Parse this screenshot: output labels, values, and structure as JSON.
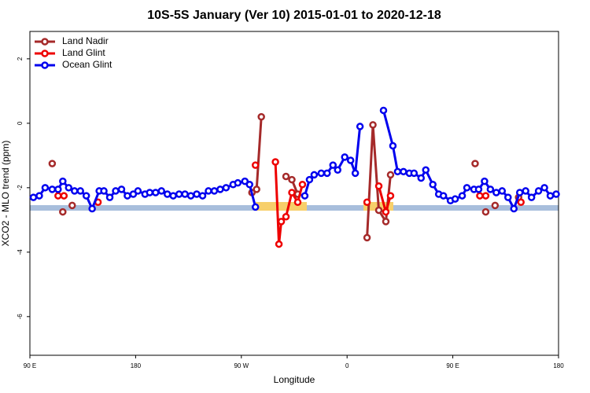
{
  "chart_data": {
    "type": "line",
    "title": "10S-5S January (Ver 10)   2015-01-01 to 2020-12-18",
    "x_label": "Longitude",
    "y_label": "XCO2 - MLO trend (ppm)",
    "xlim": [
      90,
      540
    ],
    "ylim": [
      -7.2,
      2.85
    ],
    "xticks": [
      {
        "value": 90,
        "label": "90 E"
      },
      {
        "value": 180,
        "label": "180"
      },
      {
        "value": 270,
        "label": "90 W"
      },
      {
        "value": 360,
        "label": "0"
      },
      {
        "value": 450,
        "label": "90 E"
      },
      {
        "value": 540,
        "label": "180"
      }
    ],
    "yticks": [
      2,
      0,
      -2,
      -4,
      -6
    ],
    "legend": "top-left",
    "series": [
      {
        "name": "Land Nadir",
        "color": "#a52a2a",
        "x": [
          109,
          null,
          118,
          null,
          126,
          null,
          279,
          283,
          287,
          null,
          308,
          313,
          318,
          null,
          377,
          382,
          387,
          393,
          397,
          null,
          469,
          null,
          478,
          null,
          486,
          null,
          506
        ],
        "values": [
          -1.25,
          null,
          -2.75,
          null,
          -2.55,
          null,
          -2.15,
          -2.05,
          0.2,
          null,
          -1.65,
          -1.75,
          -2.2,
          null,
          -3.55,
          -0.05,
          -2.7,
          -3.05,
          -1.6,
          null,
          -1.25,
          null,
          -2.75,
          null,
          -2.55,
          null,
          -2.3
        ]
      },
      {
        "name": "Land Glint",
        "color": "#ee0000",
        "x": [
          114,
          119,
          null,
          148,
          null,
          282,
          null,
          299,
          302,
          304,
          308,
          313,
          318,
          322,
          null,
          377,
          null,
          387,
          393,
          397,
          null,
          473,
          478,
          null,
          508
        ],
        "values": [
          -2.25,
          -2.25,
          null,
          -2.45,
          null,
          -1.3,
          null,
          -1.2,
          -3.75,
          -3.05,
          -2.9,
          -2.15,
          -2.45,
          -1.9,
          null,
          -2.45,
          null,
          -1.95,
          -2.75,
          -2.25,
          null,
          -2.25,
          -2.25,
          null,
          -2.45
        ]
      },
      {
        "name": "Ocean Glint",
        "color": "#0000ee",
        "x": [
          93,
          98,
          103,
          109,
          114,
          118,
          123,
          128,
          133,
          138,
          143,
          149,
          153,
          158,
          163,
          168,
          173,
          178,
          182,
          188,
          192,
          197,
          202,
          207,
          212,
          217,
          222,
          227,
          232,
          237,
          242,
          247,
          252,
          257,
          263,
          267,
          273,
          277,
          282,
          null,
          324,
          328,
          332,
          338,
          343,
          348,
          352,
          358,
          363,
          367,
          371,
          null,
          391,
          399,
          403,
          408,
          413,
          417,
          423,
          427,
          433,
          438,
          442,
          448,
          452,
          458,
          462,
          468,
          472,
          477,
          482,
          487,
          492,
          497,
          502,
          507,
          512,
          517,
          523,
          528,
          533,
          538
        ],
        "values": [
          -2.3,
          -2.25,
          -2.0,
          -2.05,
          -2.05,
          -1.8,
          -2.0,
          -2.1,
          -2.1,
          -2.25,
          -2.65,
          -2.1,
          -2.1,
          -2.3,
          -2.1,
          -2.05,
          -2.25,
          -2.2,
          -2.1,
          -2.2,
          -2.15,
          -2.15,
          -2.1,
          -2.2,
          -2.25,
          -2.2,
          -2.2,
          -2.25,
          -2.2,
          -2.25,
          -2.1,
          -2.1,
          -2.05,
          -2.0,
          -1.9,
          -1.85,
          -1.8,
          -1.9,
          -2.6,
          null,
          -2.25,
          -1.75,
          -1.6,
          -1.55,
          -1.55,
          -1.3,
          -1.45,
          -1.05,
          -1.15,
          -1.55,
          -0.1,
          null,
          0.4,
          -0.7,
          -1.5,
          -1.5,
          -1.55,
          -1.55,
          -1.7,
          -1.45,
          -1.9,
          -2.2,
          -2.25,
          -2.4,
          -2.35,
          -2.25,
          -2.0,
          -2.05,
          -2.05,
          -1.8,
          -2.05,
          -2.15,
          -2.1,
          -2.3,
          -2.65,
          -2.15,
          -2.1,
          -2.3,
          -2.1,
          -2.0,
          -2.25,
          -2.2
        ]
      }
    ]
  }
}
